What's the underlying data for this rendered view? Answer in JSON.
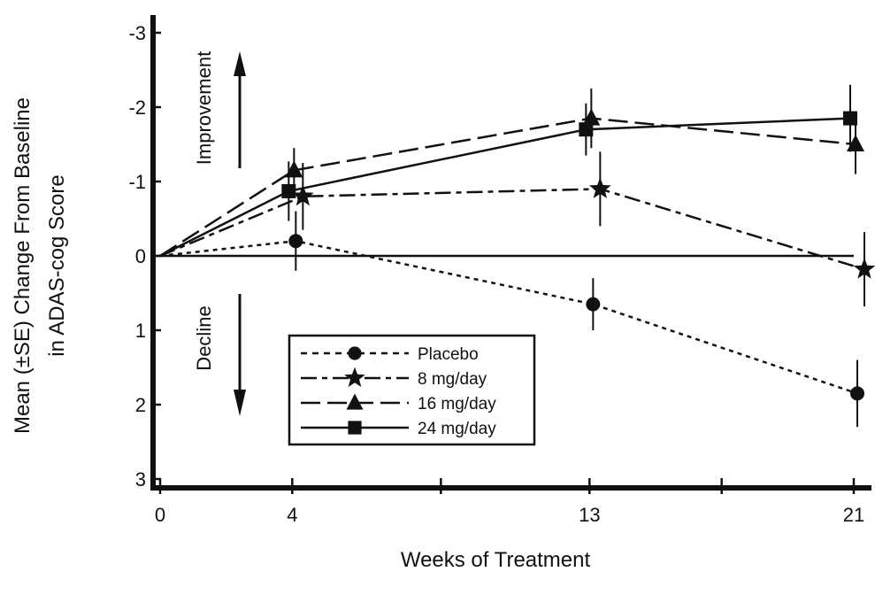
{
  "chart_data": {
    "type": "line",
    "title": "",
    "xlabel": "Weeks of Treatment",
    "ylabel_line1": "Mean (±SE) Change From Baseline",
    "ylabel_line2": "in ADAS-cog Score",
    "x": [
      0,
      4,
      13,
      21
    ],
    "xlim": [
      0,
      21
    ],
    "ylim": [
      3,
      -3
    ],
    "y_inverted": true,
    "x_ticks": [
      0,
      4,
      8.5,
      13,
      17,
      21
    ],
    "x_tick_labels": [
      "0",
      "4",
      "",
      "13",
      "",
      "21"
    ],
    "y_ticks": [
      -3,
      -2,
      -1,
      0,
      1,
      2,
      3
    ],
    "y_tick_labels": [
      "-3",
      "-2",
      "-1",
      "0",
      "1",
      "2",
      "3"
    ],
    "grid": false,
    "legend_position": "bottom-center",
    "annotations": {
      "improvement": "Improvement",
      "decline": "Decline"
    },
    "series": [
      {
        "name": "Placebo",
        "marker": "circle",
        "dash": "short-dash",
        "values": [
          0,
          -0.2,
          0.65,
          1.85
        ],
        "se": [
          0,
          0.4,
          0.35,
          0.45
        ]
      },
      {
        "name": "8 mg/day",
        "marker": "star",
        "dash": "dash-dot",
        "values": [
          0,
          -0.8,
          -0.9,
          0.18
        ],
        "se": [
          0,
          0.45,
          0.5,
          0.5
        ]
      },
      {
        "name": "16 mg/day",
        "marker": "triangle",
        "dash": "long-dash",
        "values": [
          0,
          -1.15,
          -1.85,
          -1.5
        ],
        "se": [
          0,
          0.3,
          0.4,
          0.4
        ]
      },
      {
        "name": "24 mg/day",
        "marker": "square",
        "dash": "solid",
        "values": [
          0,
          -0.87,
          -1.7,
          -1.85
        ],
        "se": [
          0,
          0.4,
          0.35,
          0.45
        ]
      }
    ]
  }
}
